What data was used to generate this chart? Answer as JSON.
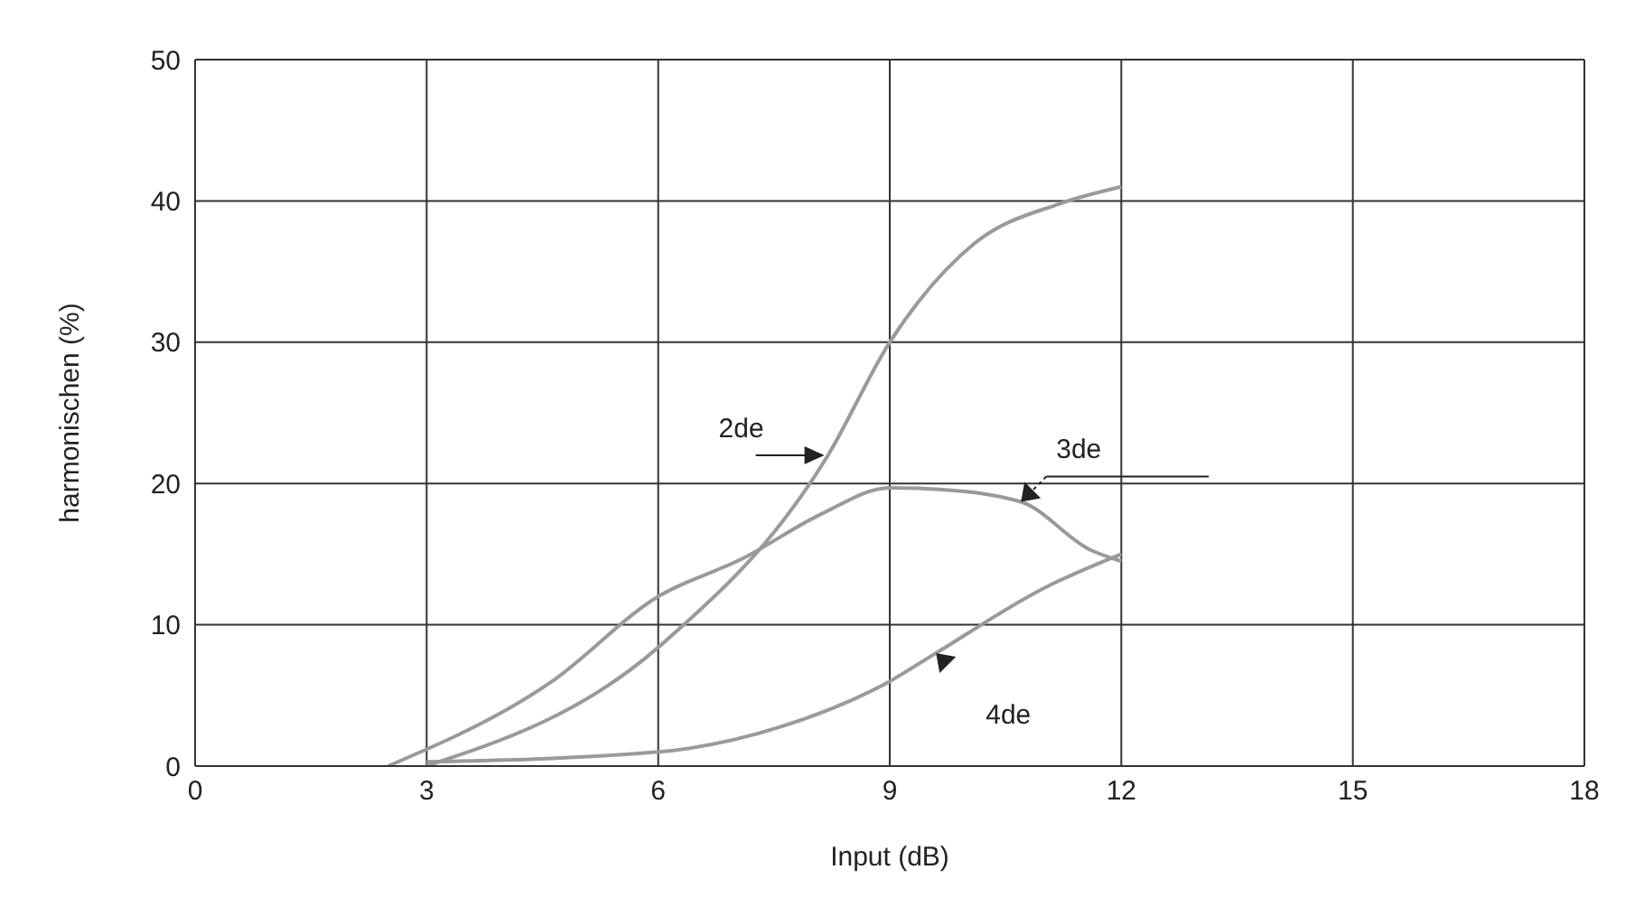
{
  "chart_data": {
    "type": "line",
    "xlabel": "Input (dB)",
    "ylabel": "harmonischen (%)",
    "xlim": [
      0,
      18
    ],
    "xticks": [
      0,
      3,
      6,
      9,
      12,
      15,
      18
    ],
    "ylim": [
      0,
      50
    ],
    "yticks": [
      0,
      10,
      20,
      30,
      40,
      50
    ],
    "grid": true,
    "legend": false,
    "marker": "none",
    "line_style": "solid",
    "series": [
      {
        "name": "2de",
        "color": "#9a9a9a",
        "x": [
          3,
          6,
          8.2,
          9,
          10.1,
          11.2,
          12
        ],
        "values": [
          0,
          8.4,
          22,
          30,
          37,
          39.8,
          41
        ]
      },
      {
        "name": "3de",
        "color": "#9a9a9a",
        "x": [
          2.5,
          4.6,
          6,
          7.1,
          8.1,
          9,
          9.6,
          10.7,
          11.6,
          12
        ],
        "values": [
          0,
          5.9,
          12,
          14.7,
          17.8,
          19.7,
          19.6,
          18.7,
          15.3,
          14.5
        ]
      },
      {
        "name": "4de",
        "color": "#9a9a9a",
        "x": [
          3,
          6,
          7.6,
          9,
          9.6,
          11,
          12
        ],
        "values": [
          0.3,
          1,
          2.8,
          6,
          8,
          12.6,
          15
        ]
      }
    ]
  }
}
